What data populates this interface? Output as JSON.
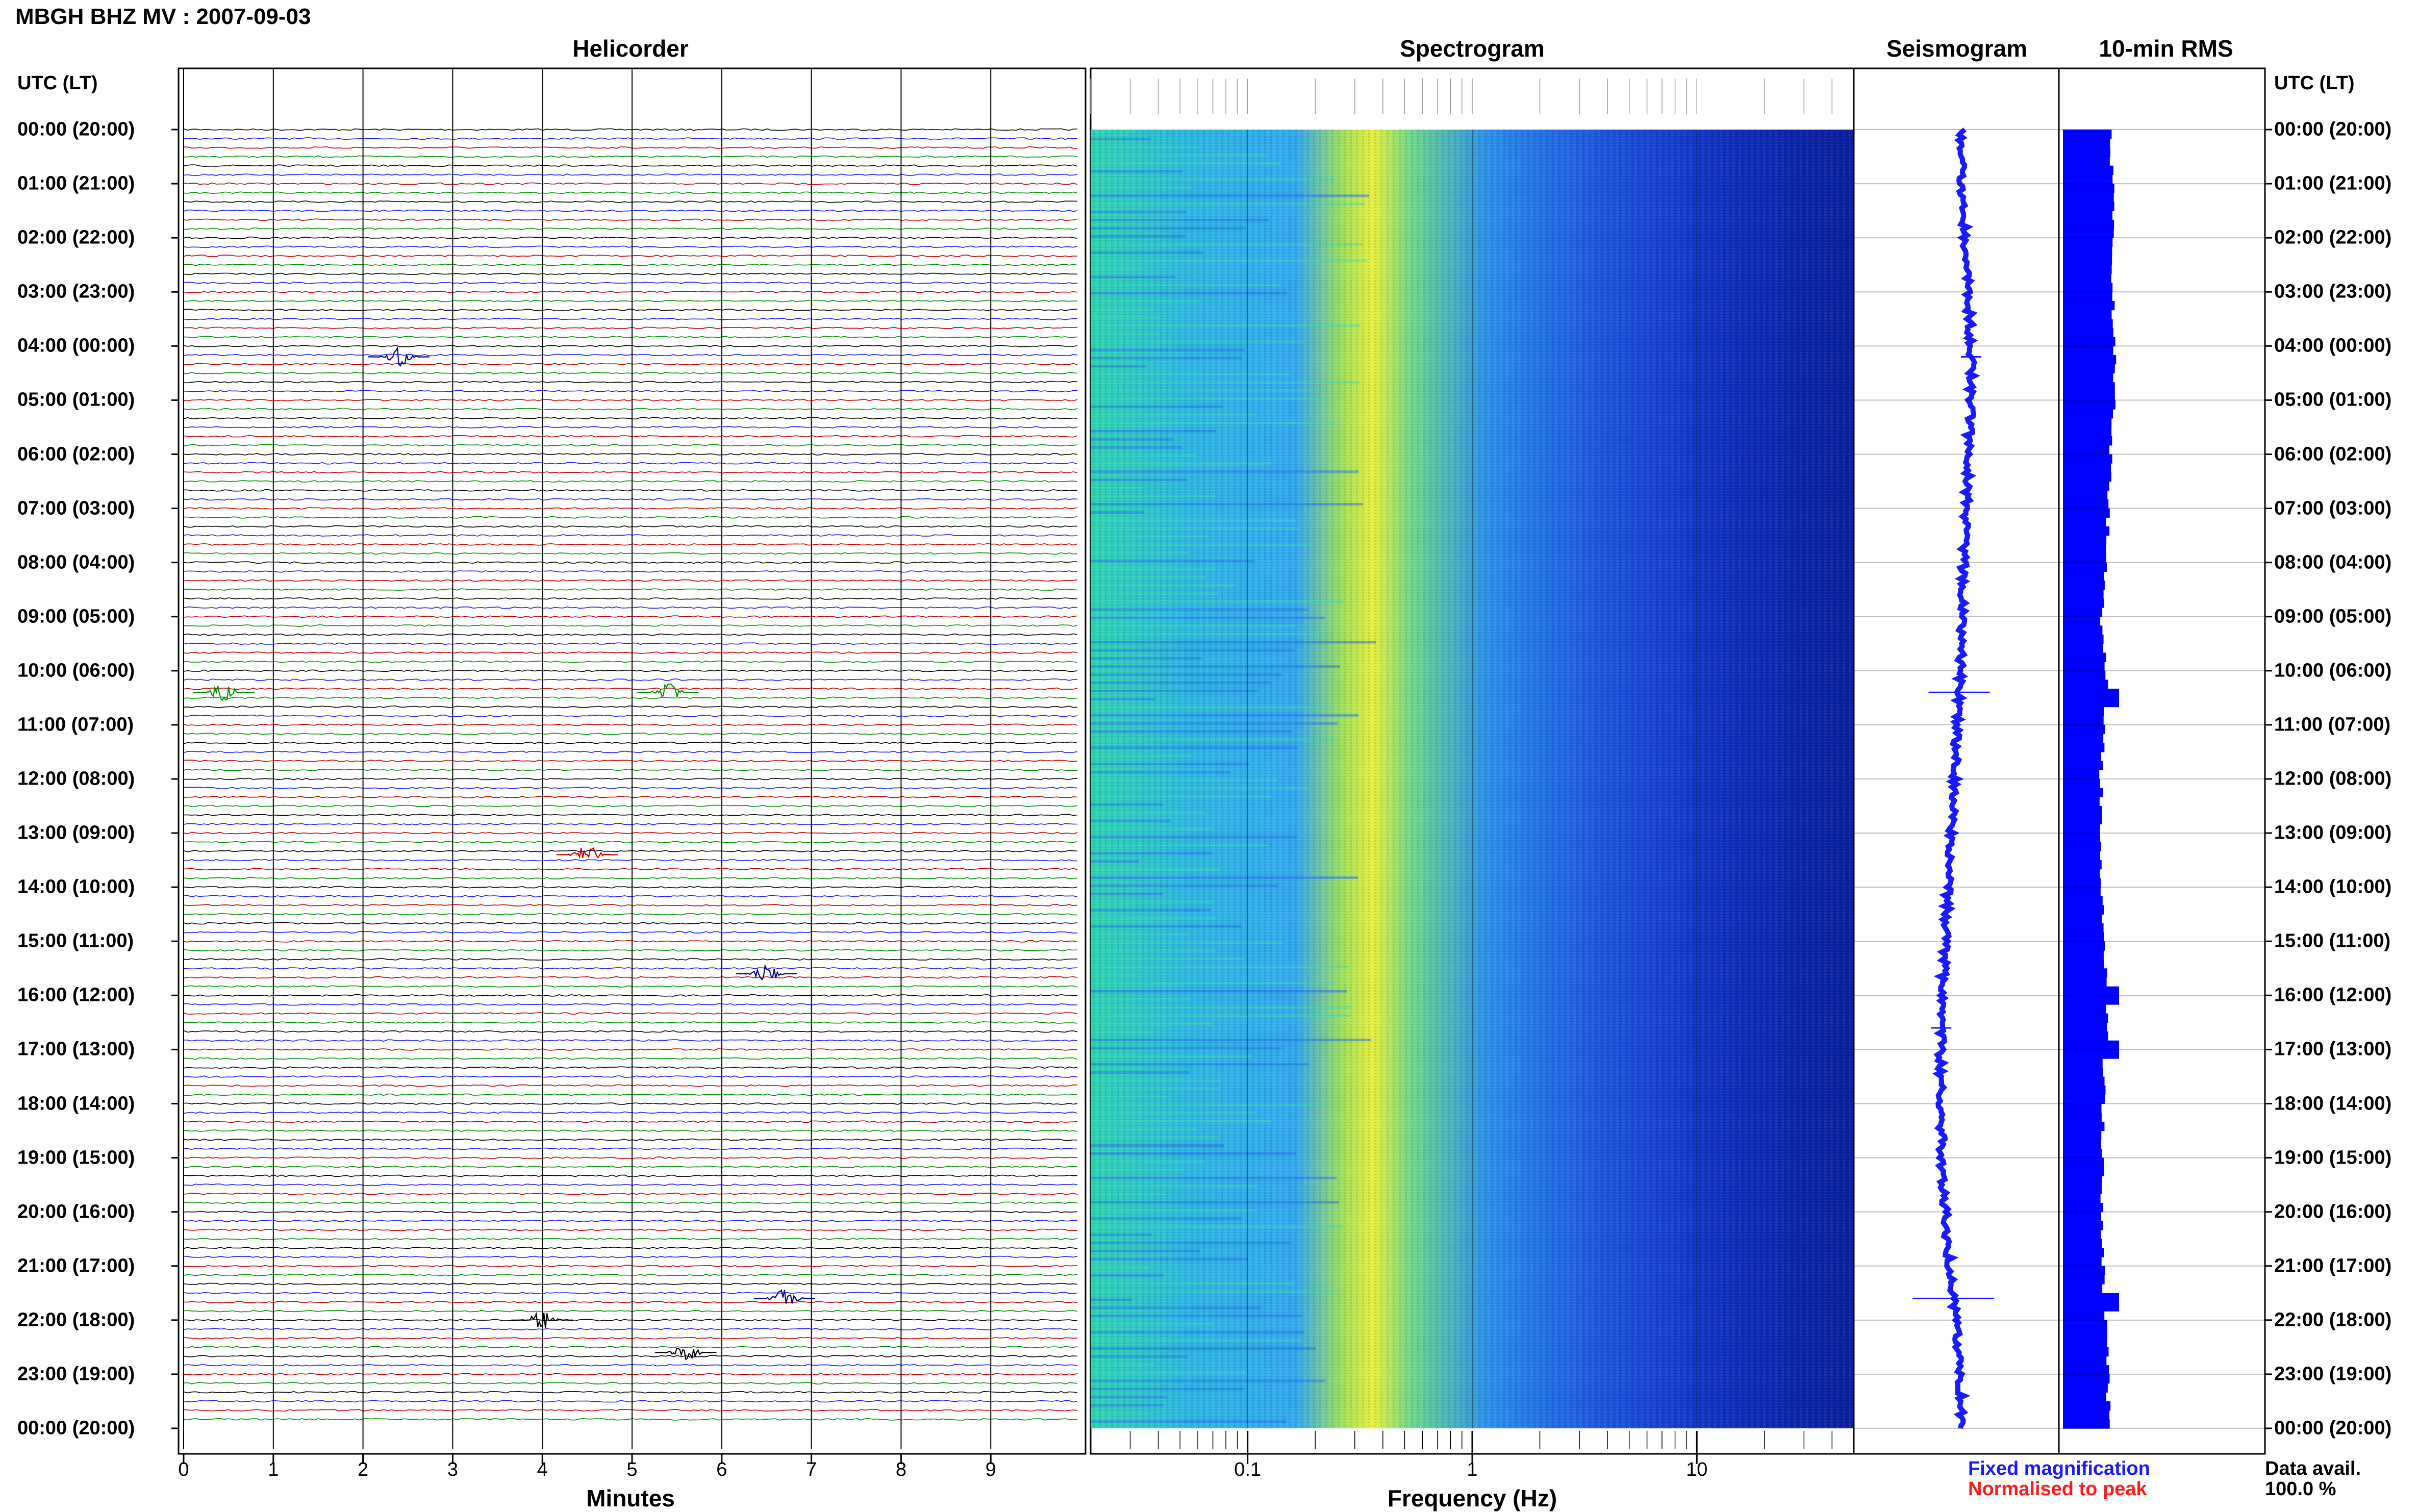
{
  "title": "MBGH BHZ MV : 2007-09-03",
  "panels": {
    "helicorder": "Helicorder",
    "spectrogram": "Spectrogram",
    "seismogram": "Seismogram",
    "rms": "10-min RMS"
  },
  "utc_header": "UTC (LT)",
  "time_labels": [
    "00:00 (20:00)",
    "01:00 (21:00)",
    "02:00 (22:00)",
    "03:00 (23:00)",
    "04:00 (00:00)",
    "05:00 (01:00)",
    "06:00 (02:00)",
    "07:00 (03:00)",
    "08:00 (04:00)",
    "09:00 (05:00)",
    "10:00 (06:00)",
    "11:00 (07:00)",
    "12:00 (08:00)",
    "13:00 (09:00)",
    "14:00 (10:00)",
    "15:00 (11:00)",
    "16:00 (12:00)",
    "17:00 (13:00)",
    "18:00 (14:00)",
    "19:00 (15:00)",
    "20:00 (16:00)",
    "21:00 (17:00)",
    "22:00 (18:00)",
    "23:00 (19:00)",
    "00:00 (20:00)"
  ],
  "helicorder_axis": {
    "label": "Minutes",
    "ticks": [
      "0",
      "1",
      "2",
      "3",
      "4",
      "5",
      "6",
      "7",
      "8",
      "9"
    ]
  },
  "spectrogram_axis": {
    "label": "Frequency (Hz)",
    "ticks": [
      "0.1",
      "1",
      "10"
    ],
    "scale": "log"
  },
  "legend": {
    "fixed": "Fixed magnification",
    "normalised": "Normalised to peak",
    "fixed_color": "#1a1aff",
    "normalised_color": "#ff1a1a"
  },
  "data_avail": {
    "label": "Data avail.",
    "value": "100.0 %"
  },
  "chart_data": [
    {
      "type": "line",
      "name": "helicorder",
      "x_range_minutes": [
        0,
        10
      ],
      "trace_count": 144,
      "trace_colors": [
        "#000000",
        "#1a1aff",
        "#c00000",
        "#009000"
      ],
      "events": [
        {
          "hour": 4.2,
          "minute": 2.4,
          "color": "#000080"
        },
        {
          "hour": 10.4,
          "minute": 0.45,
          "color": "#009000"
        },
        {
          "hour": 10.4,
          "minute": 5.4,
          "color": "#009000"
        },
        {
          "hour": 13.4,
          "minute": 4.5,
          "color": "#c00000"
        },
        {
          "hour": 15.6,
          "minute": 6.5,
          "color": "#000080"
        },
        {
          "hour": 21.6,
          "minute": 6.7,
          "color": "#000080"
        },
        {
          "hour": 22.0,
          "minute": 4.0,
          "color": "#000000"
        },
        {
          "hour": 22.6,
          "minute": 5.6,
          "color": "#000000"
        }
      ]
    },
    {
      "type": "heatmap",
      "name": "spectrogram",
      "x_scale": "log",
      "x_range_hz": [
        0.02,
        50
      ],
      "y_range_hours": [
        0,
        24
      ],
      "colormap": [
        "#0a1f9a",
        "#1c4ed8",
        "#2d9bf0",
        "#3fd4c4",
        "#bfe84a",
        "#f2ef3a"
      ]
    },
    {
      "type": "line",
      "name": "seismogram",
      "color": "#1a1aff",
      "hours": [
        0,
        1,
        2,
        3,
        4,
        5,
        6,
        7,
        8,
        9,
        10,
        11,
        12,
        13,
        14,
        15,
        16,
        17,
        18,
        19,
        20,
        21,
        22,
        23,
        24
      ],
      "offset": [
        0.0,
        0.0,
        0.1,
        0.2,
        0.3,
        0.3,
        0.2,
        0.15,
        0.05,
        0.0,
        -0.05,
        -0.15,
        -0.25,
        -0.35,
        -0.45,
        -0.55,
        -0.65,
        -0.7,
        -0.7,
        -0.65,
        -0.55,
        -0.4,
        -0.2,
        -0.05,
        0.0
      ]
    },
    {
      "type": "bar",
      "name": "rms",
      "color": "#0000ff",
      "values_relative": [
        0.85,
        0.9,
        0.9,
        0.88,
        0.92,
        0.9,
        0.85,
        0.82,
        0.75,
        0.7,
        0.78,
        0.72,
        0.68,
        0.7,
        0.7,
        0.72,
        0.8,
        0.75,
        0.72,
        0.7,
        0.7,
        0.72,
        0.75,
        0.8,
        0.82
      ]
    }
  ]
}
